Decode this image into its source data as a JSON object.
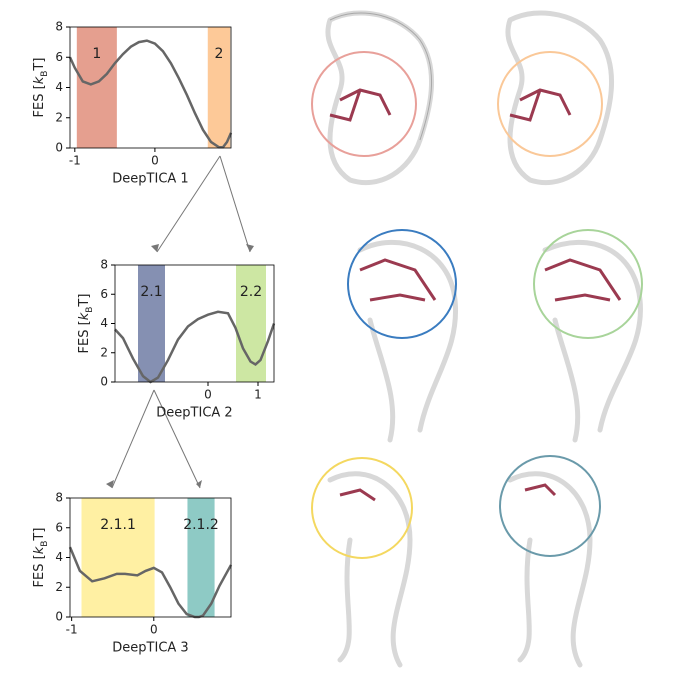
{
  "chart_data": [
    {
      "type": "line",
      "xlabel": "DeepTICA 1",
      "ylabel": [
        "FES [",
        "k",
        "B",
        "T]"
      ],
      "x": [
        -1.06,
        -1.0,
        -0.9,
        -0.8,
        -0.7,
        -0.6,
        -0.5,
        -0.4,
        -0.3,
        -0.2,
        -0.1,
        0.0,
        0.1,
        0.2,
        0.3,
        0.4,
        0.5,
        0.6,
        0.7,
        0.8,
        0.85,
        0.9,
        0.95
      ],
      "values": [
        6.0,
        5.3,
        4.4,
        4.2,
        4.4,
        4.9,
        5.6,
        6.2,
        6.7,
        7.0,
        7.1,
        6.9,
        6.4,
        5.6,
        4.6,
        3.5,
        2.3,
        1.2,
        0.4,
        0.05,
        0.05,
        0.4,
        1.0
      ],
      "color": "#666666",
      "regions": [
        {
          "label": "1",
          "range": [
            -0.975,
            -0.475
          ],
          "color": "#e59f8f"
        },
        {
          "label": "2",
          "range": [
            0.66,
            0.94
          ],
          "color": "#fdc998"
        }
      ],
      "xlim": [
        -1.06,
        0.95
      ],
      "ylim": [
        0,
        8
      ],
      "xticks": [
        -1,
        0
      ],
      "yticks": [
        0,
        2,
        4,
        6,
        8
      ]
    },
    {
      "type": "line",
      "xlabel": "DeepTICA 2",
      "ylabel": [
        "FES [",
        "k",
        "B",
        "T]"
      ],
      "x": [
        -1.86,
        -1.7,
        -1.5,
        -1.3,
        -1.15,
        -1.0,
        -0.8,
        -0.6,
        -0.4,
        -0.2,
        0.0,
        0.2,
        0.4,
        0.55,
        0.7,
        0.85,
        0.95,
        1.05,
        1.2,
        1.32
      ],
      "values": [
        3.6,
        3.0,
        1.6,
        0.4,
        0.0,
        0.3,
        1.5,
        2.9,
        3.8,
        4.3,
        4.6,
        4.8,
        4.7,
        3.7,
        2.3,
        1.4,
        1.2,
        1.5,
        2.8,
        4.0
      ],
      "color": "#666666",
      "regions": [
        {
          "label": "2.1",
          "range": [
            -1.4,
            -0.86
          ],
          "color": "#8590b2"
        },
        {
          "label": "2.2",
          "range": [
            0.56,
            1.16
          ],
          "color": "#cde7a3"
        }
      ],
      "xlim": [
        -1.86,
        1.32
      ],
      "ylim": [
        0,
        8
      ],
      "xticks": [
        0,
        1
      ],
      "yticks": [
        0,
        2,
        4,
        6,
        8
      ]
    },
    {
      "type": "line",
      "xlabel": "DeepTICA 3",
      "ylabel": [
        "FES [",
        "k",
        "B",
        "T]"
      ],
      "x": [
        -1.02,
        -0.9,
        -0.75,
        -0.6,
        -0.45,
        -0.35,
        -0.2,
        -0.1,
        0.0,
        0.1,
        0.2,
        0.3,
        0.4,
        0.5,
        0.55,
        0.6,
        0.7,
        0.8,
        0.94
      ],
      "values": [
        4.7,
        3.1,
        2.4,
        2.6,
        2.9,
        2.9,
        2.8,
        3.1,
        3.3,
        3.0,
        2.0,
        0.9,
        0.2,
        0.0,
        0.0,
        0.1,
        0.9,
        2.1,
        3.5
      ],
      "color": "#666666",
      "regions": [
        {
          "label": "2.1.1",
          "range": [
            -0.88,
            0.01
          ],
          "color": "#fff0a3"
        },
        {
          "label": "2.1.2",
          "range": [
            0.41,
            0.74
          ],
          "color": "#8ecac5"
        }
      ],
      "xlim": [
        -1.02,
        0.94
      ],
      "ylim": [
        0,
        8
      ],
      "xticks": [
        -1,
        0
      ],
      "yticks": [
        0,
        2,
        4,
        6,
        8
      ]
    }
  ]
}
